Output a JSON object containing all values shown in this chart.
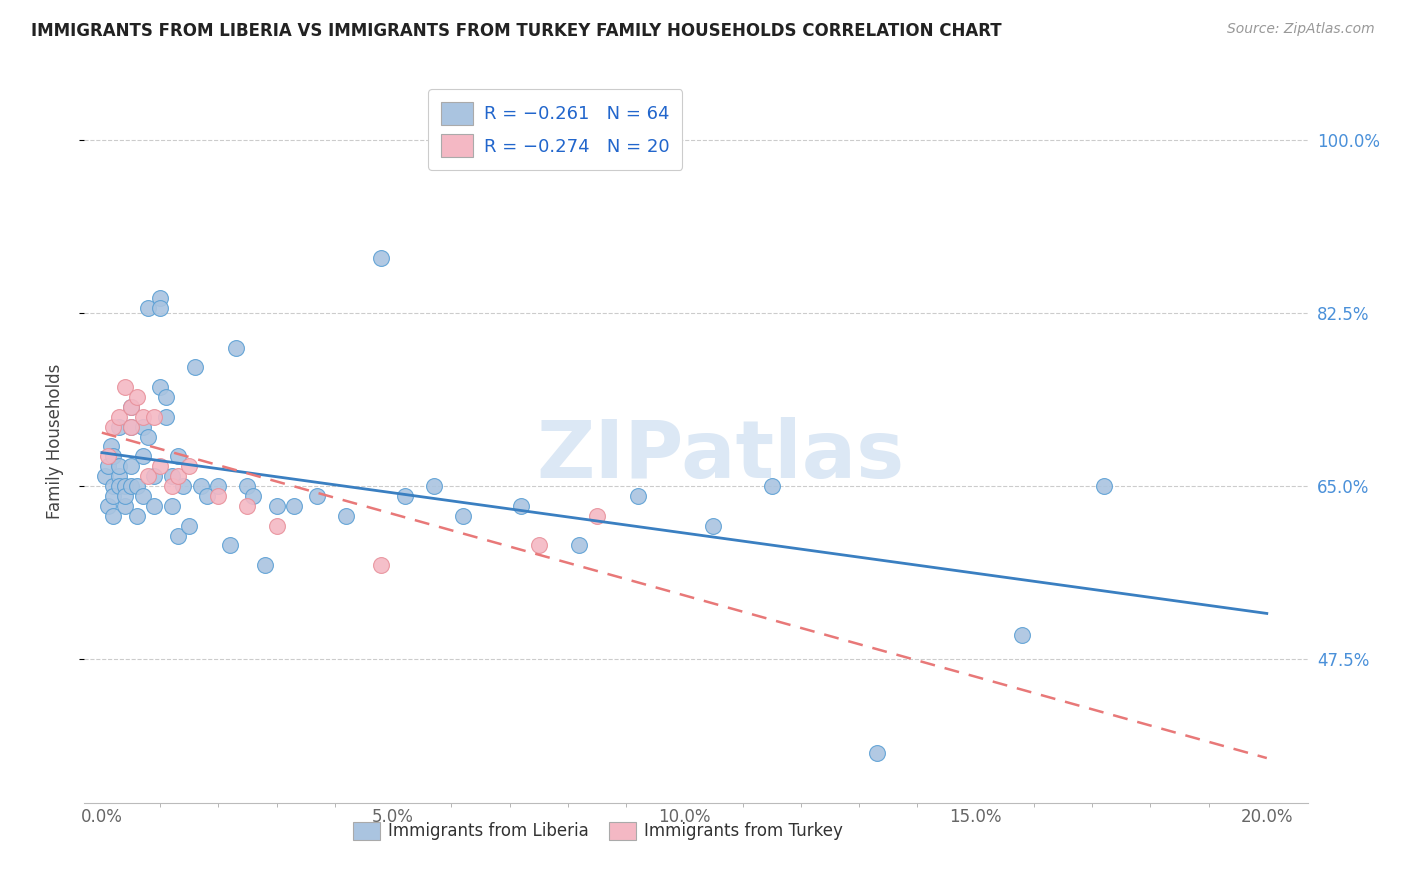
{
  "title": "IMMIGRANTS FROM LIBERIA VS IMMIGRANTS FROM TURKEY FAMILY HOUSEHOLDS CORRELATION CHART",
  "source": "Source: ZipAtlas.com",
  "xlabel_ticks": [
    "0.0%",
    "",
    "",
    "",
    "",
    "5.0%",
    "",
    "",
    "",
    "",
    "10.0%",
    "",
    "",
    "",
    "",
    "15.0%",
    "",
    "",
    "",
    "",
    "20.0%"
  ],
  "xlabel_major_ticks": [
    0.0,
    0.05,
    0.1,
    0.15,
    0.2
  ],
  "xlabel_major_labels": [
    "0.0%",
    "5.0%",
    "10.0%",
    "15.0%",
    "20.0%"
  ],
  "ylabel_ticks": [
    "47.5%",
    "65.0%",
    "82.5%",
    "100.0%"
  ],
  "ylabel_vals": [
    0.475,
    0.65,
    0.825,
    1.0
  ],
  "ylabel_label": "Family Households",
  "xlim": [
    -0.003,
    0.207
  ],
  "ylim": [
    0.33,
    1.06
  ],
  "liberia_R": -0.261,
  "liberia_N": 64,
  "turkey_R": -0.274,
  "turkey_N": 20,
  "liberia_color": "#aac4e0",
  "turkey_color": "#f4b8c4",
  "liberia_edge_color": "#5a9fd4",
  "turkey_edge_color": "#e8909a",
  "liberia_line_color": "#3a7fc1",
  "turkey_line_color": "#e87878",
  "watermark": "ZIPatlas",
  "legend_label1": "R = −0.261   N = 64",
  "legend_label2": "R = −0.274   N = 20",
  "bottom_label1": "Immigrants from Liberia",
  "bottom_label2": "Immigrants from Turkey",
  "liberia_x": [
    0.0005,
    0.001,
    0.001,
    0.0015,
    0.002,
    0.002,
    0.002,
    0.002,
    0.003,
    0.003,
    0.003,
    0.003,
    0.004,
    0.004,
    0.004,
    0.005,
    0.005,
    0.005,
    0.005,
    0.006,
    0.006,
    0.007,
    0.007,
    0.007,
    0.008,
    0.008,
    0.009,
    0.009,
    0.01,
    0.01,
    0.01,
    0.011,
    0.011,
    0.012,
    0.012,
    0.013,
    0.013,
    0.014,
    0.015,
    0.016,
    0.017,
    0.018,
    0.02,
    0.022,
    0.023,
    0.025,
    0.026,
    0.028,
    0.03,
    0.033,
    0.037,
    0.042,
    0.048,
    0.052,
    0.057,
    0.062,
    0.072,
    0.082,
    0.092,
    0.105,
    0.115,
    0.133,
    0.158,
    0.172
  ],
  "liberia_y": [
    0.66,
    0.67,
    0.63,
    0.69,
    0.65,
    0.64,
    0.62,
    0.68,
    0.66,
    0.65,
    0.67,
    0.71,
    0.65,
    0.63,
    0.64,
    0.73,
    0.65,
    0.71,
    0.67,
    0.65,
    0.62,
    0.71,
    0.68,
    0.64,
    0.83,
    0.7,
    0.66,
    0.63,
    0.84,
    0.83,
    0.75,
    0.74,
    0.72,
    0.66,
    0.63,
    0.68,
    0.6,
    0.65,
    0.61,
    0.77,
    0.65,
    0.64,
    0.65,
    0.59,
    0.79,
    0.65,
    0.64,
    0.57,
    0.63,
    0.63,
    0.64,
    0.62,
    0.88,
    0.64,
    0.65,
    0.62,
    0.63,
    0.59,
    0.64,
    0.61,
    0.65,
    0.38,
    0.5,
    0.65
  ],
  "turkey_x": [
    0.001,
    0.002,
    0.003,
    0.004,
    0.005,
    0.005,
    0.006,
    0.007,
    0.008,
    0.009,
    0.01,
    0.012,
    0.013,
    0.015,
    0.02,
    0.025,
    0.03,
    0.048,
    0.075,
    0.085
  ],
  "turkey_y": [
    0.68,
    0.71,
    0.72,
    0.75,
    0.73,
    0.71,
    0.74,
    0.72,
    0.66,
    0.72,
    0.67,
    0.65,
    0.66,
    0.67,
    0.64,
    0.63,
    0.61,
    0.57,
    0.59,
    0.62
  ],
  "line_x_start": 0.0,
  "line_x_end": 0.2
}
